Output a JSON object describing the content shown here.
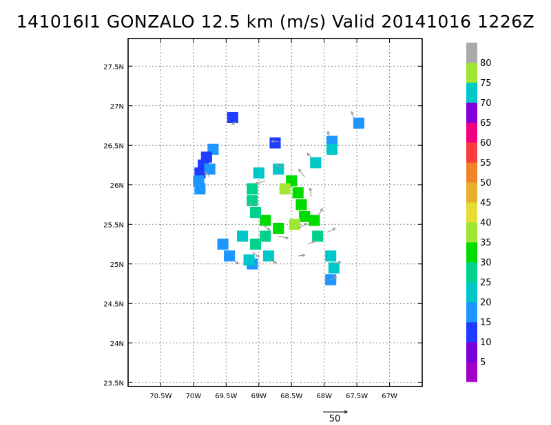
{
  "chart_data": {
    "type": "heatmap",
    "title": "141016I1 GONZALO 12.5 km (m/s) Valid 20141016 1226Z",
    "storm_name": "GONZALO",
    "units": "m/s",
    "valid_time": "20141016 1226Z",
    "xlim": [
      -71.0,
      -66.5
    ],
    "ylim": [
      23.45,
      27.85
    ],
    "x_ticks": [
      -70.5,
      -70.0,
      -69.5,
      -69.0,
      -68.5,
      -68.0,
      -67.5,
      -67.0
    ],
    "x_tick_labels": [
      "70.5W",
      "70W",
      "69.5W",
      "69W",
      "68.5W",
      "68W",
      "67.5W",
      "67W"
    ],
    "y_ticks": [
      23.5,
      24.0,
      24.5,
      25.0,
      25.5,
      26.0,
      26.5,
      27.0,
      27.5
    ],
    "y_tick_labels": [
      "23.5N",
      "24N",
      "24.5N",
      "25N",
      "25.5N",
      "26N",
      "26.5N",
      "27N",
      "27.5N"
    ],
    "grid": true,
    "colorbar": {
      "bounds": [
        0,
        5,
        10,
        15,
        20,
        25,
        30,
        35,
        40,
        45,
        50,
        55,
        60,
        65,
        70,
        75,
        80,
        85
      ],
      "colors": [
        "#a000c8",
        "#7800dc",
        "#1e3cff",
        "#1e96ff",
        "#00c8c8",
        "#00d28c",
        "#00dc00",
        "#a0e632",
        "#e6dc32",
        "#e6af2d",
        "#f08228",
        "#fa3c3c",
        "#f00082",
        "#8200dc",
        "#00c8c8",
        "#a0e632",
        "#aaaaaa"
      ],
      "labels": [
        "5",
        "10",
        "15",
        "20",
        "25",
        "30",
        "35",
        "40",
        "45",
        "50",
        "55",
        "60",
        "65",
        "70",
        "75",
        "80"
      ]
    },
    "vector_reference": {
      "label": "50",
      "value": 50
    },
    "cells": [
      {
        "lon": -69.4,
        "lat": 26.85,
        "v": 12
      },
      {
        "lon": -68.75,
        "lat": 26.53,
        "v": 12
      },
      {
        "lon": -67.88,
        "lat": 26.55,
        "v": 18
      },
      {
        "lon": -67.88,
        "lat": 26.45,
        "v": 20
      },
      {
        "lon": -67.47,
        "lat": 26.78,
        "v": 18
      },
      {
        "lon": -68.13,
        "lat": 26.28,
        "v": 24
      },
      {
        "lon": -69.7,
        "lat": 26.45,
        "v": 18
      },
      {
        "lon": -69.8,
        "lat": 26.35,
        "v": 10
      },
      {
        "lon": -69.85,
        "lat": 26.25,
        "v": 10
      },
      {
        "lon": -69.9,
        "lat": 26.15,
        "v": 12
      },
      {
        "lon": -69.92,
        "lat": 26.05,
        "v": 15
      },
      {
        "lon": -69.9,
        "lat": 25.95,
        "v": 18
      },
      {
        "lon": -69.75,
        "lat": 26.2,
        "v": 15
      },
      {
        "lon": -69.1,
        "lat": 25.95,
        "v": 27
      },
      {
        "lon": -69.0,
        "lat": 26.15,
        "v": 24
      },
      {
        "lon": -68.7,
        "lat": 26.2,
        "v": 24
      },
      {
        "lon": -68.5,
        "lat": 26.05,
        "v": 33
      },
      {
        "lon": -68.6,
        "lat": 25.95,
        "v": 37
      },
      {
        "lon": -68.4,
        "lat": 25.9,
        "v": 32
      },
      {
        "lon": -68.35,
        "lat": 25.75,
        "v": 31
      },
      {
        "lon": -68.3,
        "lat": 25.6,
        "v": 34
      },
      {
        "lon": -68.45,
        "lat": 25.5,
        "v": 36
      },
      {
        "lon": -68.15,
        "lat": 25.55,
        "v": 30
      },
      {
        "lon": -68.1,
        "lat": 25.35,
        "v": 28
      },
      {
        "lon": -68.7,
        "lat": 25.45,
        "v": 31
      },
      {
        "lon": -68.9,
        "lat": 25.55,
        "v": 30
      },
      {
        "lon": -69.05,
        "lat": 25.65,
        "v": 26
      },
      {
        "lon": -69.1,
        "lat": 25.8,
        "v": 28
      },
      {
        "lon": -68.9,
        "lat": 25.35,
        "v": 29
      },
      {
        "lon": -69.05,
        "lat": 25.25,
        "v": 27
      },
      {
        "lon": -68.85,
        "lat": 25.1,
        "v": 24
      },
      {
        "lon": -69.25,
        "lat": 25.35,
        "v": 23
      },
      {
        "lon": -69.55,
        "lat": 25.25,
        "v": 17
      },
      {
        "lon": -69.45,
        "lat": 25.1,
        "v": 18
      },
      {
        "lon": -69.1,
        "lat": 25.0,
        "v": 18
      },
      {
        "lon": -69.15,
        "lat": 25.05,
        "v": 24
      },
      {
        "lon": -67.9,
        "lat": 25.1,
        "v": 22
      },
      {
        "lon": -67.85,
        "lat": 24.95,
        "v": 20
      },
      {
        "lon": -67.9,
        "lat": 24.8,
        "v": 17
      }
    ],
    "vectors": [
      {
        "lon": -69.35,
        "lat": 26.8,
        "u": -8,
        "v": -6
      },
      {
        "lon": -68.7,
        "lat": 26.55,
        "u": -14,
        "v": 0
      },
      {
        "lon": -67.55,
        "lat": 26.85,
        "u": -4,
        "v": 12
      },
      {
        "lon": -67.92,
        "lat": 26.6,
        "u": -3,
        "v": 12
      },
      {
        "lon": -68.2,
        "lat": 26.35,
        "u": -8,
        "v": 8
      },
      {
        "lon": -69.75,
        "lat": 26.1,
        "u": -8,
        "v": 10
      },
      {
        "lon": -68.6,
        "lat": 26.2,
        "u": -18,
        "v": 8
      },
      {
        "lon": -68.3,
        "lat": 26.1,
        "u": -12,
        "v": 16
      },
      {
        "lon": -68.9,
        "lat": 26.05,
        "u": -20,
        "v": -6
      },
      {
        "lon": -69.1,
        "lat": 25.85,
        "u": -4,
        "v": -18
      },
      {
        "lon": -68.2,
        "lat": 25.85,
        "u": -2,
        "v": 18
      },
      {
        "lon": -68.1,
        "lat": 25.6,
        "u": 10,
        "v": 16
      },
      {
        "lon": -68.4,
        "lat": 25.45,
        "u": 18,
        "v": 10
      },
      {
        "lon": -68.7,
        "lat": 25.35,
        "u": 20,
        "v": -4
      },
      {
        "lon": -68.95,
        "lat": 25.5,
        "u": 16,
        "v": -12
      },
      {
        "lon": -67.95,
        "lat": 25.4,
        "u": 16,
        "v": 8
      },
      {
        "lon": -69.1,
        "lat": 25.15,
        "u": 14,
        "v": -10
      },
      {
        "lon": -68.85,
        "lat": 25.05,
        "u": 16,
        "v": -6
      },
      {
        "lon": -68.4,
        "lat": 25.1,
        "u": 14,
        "v": 2
      },
      {
        "lon": -67.85,
        "lat": 25.0,
        "u": 14,
        "v": 4
      },
      {
        "lon": -67.9,
        "lat": 24.8,
        "u": 12,
        "v": 6
      },
      {
        "lon": -69.4,
        "lat": 25.05,
        "u": 12,
        "v": -8
      },
      {
        "lon": -68.25,
        "lat": 25.25,
        "u": 14,
        "v": 6
      }
    ]
  }
}
